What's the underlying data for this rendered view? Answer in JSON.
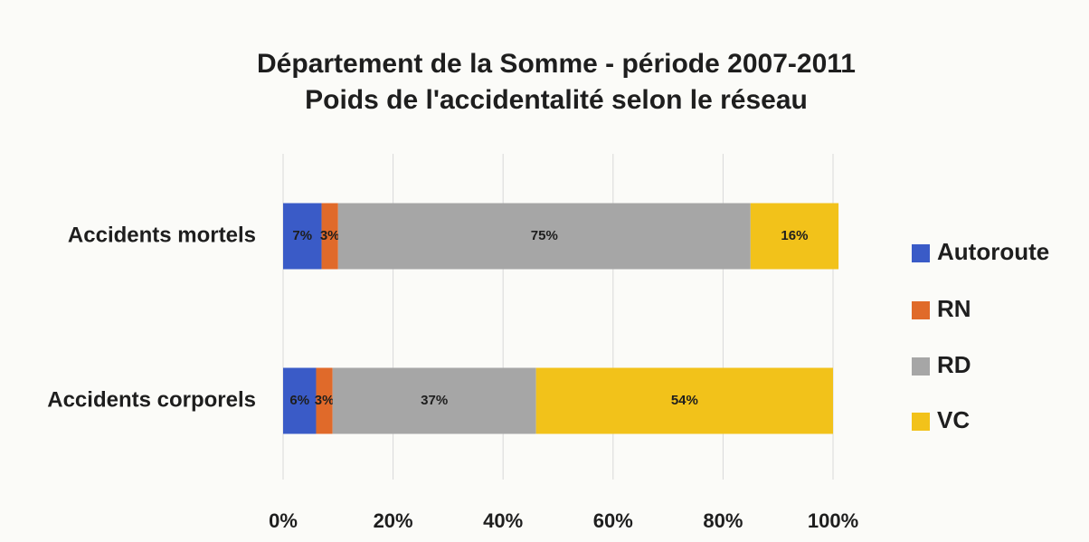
{
  "chart_data": {
    "type": "stacked_bar_horizontal",
    "title": "Département de la Somme - période 2007-2011",
    "subtitle": "Poids de l'accidentalité selon le réseau",
    "categories": [
      "Accidents mortels",
      "Accidents corporels"
    ],
    "series": [
      {
        "name": "Autoroute",
        "color": "#3a5bc7",
        "values": [
          7,
          6
        ],
        "value_labels": [
          "7%",
          "6%"
        ]
      },
      {
        "name": "RN",
        "color": "#e06a2a",
        "values": [
          3,
          3
        ],
        "value_labels": [
          "3%",
          "3%"
        ]
      },
      {
        "name": "RD",
        "color": "#a6a6a6",
        "values": [
          75,
          37
        ],
        "value_labels": [
          "75%",
          "37%"
        ]
      },
      {
        "name": "VC",
        "color": "#f2c21a",
        "values": [
          16,
          54
        ],
        "value_labels": [
          "16%",
          "54%"
        ]
      }
    ],
    "xlim": [
      0,
      100
    ],
    "xticks": [
      {
        "value": 0,
        "label": "0%"
      },
      {
        "value": 20,
        "label": "20%"
      },
      {
        "value": 40,
        "label": "40%"
      },
      {
        "value": 60,
        "label": "60%"
      },
      {
        "value": 80,
        "label": "80%"
      },
      {
        "value": 100,
        "label": "100%"
      }
    ],
    "grid": true,
    "legend": "right"
  }
}
